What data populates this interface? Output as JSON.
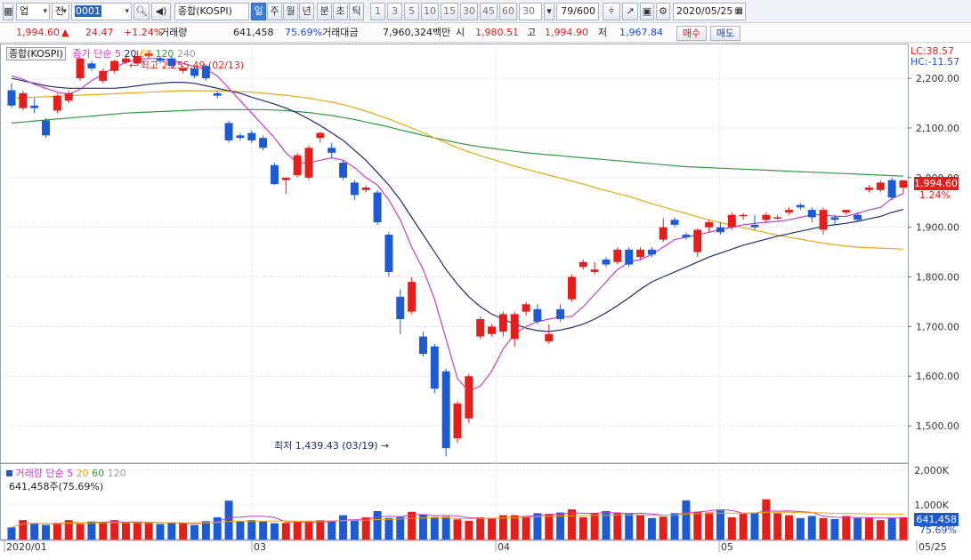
{
  "toolbar": {
    "market_select": "업",
    "type_select": "전",
    "code_input": "0001",
    "index_name": "종합(KOSPI)",
    "period_tabs": [
      "일",
      "주",
      "월",
      "년",
      "분",
      "초",
      "틱"
    ],
    "selected_period": "일",
    "interval_buttons": [
      "1",
      "3",
      "5",
      "10",
      "15",
      "30",
      "45",
      "60"
    ],
    "interval_value": "30",
    "count_display": "79/600",
    "date_input": "2020/05/25"
  },
  "info": {
    "price": "1,994.60",
    "change": "24.47",
    "change_pct": "+1.24%",
    "volume_label": "거래량",
    "volume": "641,458",
    "volume_pct": "75.69%",
    "amount_label": "거래대금",
    "amount": "7,960,324백만",
    "open_label": "시",
    "open": "1,980.51",
    "high_label": "고",
    "high": "1,994.90",
    "low_label": "저",
    "low": "1,967.84",
    "buy_button": "매수",
    "sell_button": "매도"
  },
  "legend": {
    "name": "종합(KOSPI)",
    "ma_prefix": "종가 단순",
    "ma_periods": [
      "5",
      "20",
      "60",
      "120",
      "240"
    ],
    "volume_prefix": "거래량 단순",
    "volume_ma_periods": [
      "5",
      "20",
      "60",
      "120"
    ],
    "volume_readout": "641,458주(75.69%)"
  },
  "annotations": {
    "high": "최고 2,255.49 (02/13)",
    "low": "최저 1,439.43 (03/19)"
  },
  "right_axis": {
    "lc": "LC:38.57",
    "hc": "HC:-11.57",
    "price_box": "1,994.60",
    "price_pct": "1.24%",
    "vol_box": "641,458",
    "vol_pct": "75.69%"
  },
  "colors": {
    "up": "#e0201c",
    "down": "#1e5bd0",
    "ma5": "#c43bc4",
    "ma20": "#1c2c6e",
    "ma60": "#e8a60f",
    "ma120": "#2f9a3f",
    "ma240": "#999999"
  },
  "chart_data": {
    "type": "candlestick",
    "price_ticks": [
      "2,200.00",
      "2,100.00",
      "2,000.00",
      "1,900.00",
      "1,800.00",
      "1,700.00",
      "1,600.00",
      "1,500.00"
    ],
    "volume_ticks": [
      "2,000K",
      "1,000K"
    ],
    "x_labels": [
      "2020/01",
      "03",
      "04",
      "05",
      "05/25"
    ],
    "ylim": [
      1425,
      2270
    ],
    "candles": [
      [
        2176,
        2145,
        2190,
        2140
      ],
      [
        2140,
        2170,
        2175,
        2135
      ],
      [
        2145,
        2140,
        2160,
        2130
      ],
      [
        2115,
        2085,
        2120,
        2080
      ],
      [
        2135,
        2165,
        2170,
        2130
      ],
      [
        2155,
        2170,
        2175,
        2150
      ],
      [
        2200,
        2240,
        2242,
        2195
      ],
      [
        2230,
        2220,
        2235,
        2215
      ],
      [
        2195,
        2215,
        2220,
        2190
      ],
      [
        2215,
        2235,
        2238,
        2210
      ],
      [
        2232,
        2240,
        2245,
        2228
      ],
      [
        2230,
        2245,
        2256,
        2225
      ],
      [
        2245,
        2250,
        2255,
        2240
      ],
      [
        2240,
        2235,
        2245,
        2230
      ],
      [
        2240,
        2225,
        2245,
        2220
      ],
      [
        2215,
        2220,
        2225,
        2210
      ],
      [
        2220,
        2205,
        2225,
        2200
      ],
      [
        2225,
        2200,
        2228,
        2195
      ],
      [
        2170,
        2165,
        2175,
        2160
      ],
      [
        2110,
        2075,
        2115,
        2070
      ],
      [
        2085,
        2080,
        2090,
        2075
      ],
      [
        2090,
        2075,
        2095,
        2070
      ],
      [
        2080,
        2060,
        2085,
        2055
      ],
      [
        2025,
        1987,
        2030,
        1985
      ],
      [
        1995,
        2000,
        2000,
        1967
      ],
      [
        2005,
        2045,
        2050,
        2000
      ],
      [
        2000,
        2060,
        2065,
        1995
      ],
      [
        2080,
        2090,
        2092,
        2070
      ],
      [
        2060,
        2050,
        2070,
        2040
      ],
      [
        2030,
        2000,
        2035,
        1995
      ],
      [
        1990,
        1965,
        1995,
        1955
      ],
      [
        1975,
        1980,
        1985,
        1970
      ],
      [
        1970,
        1910,
        1975,
        1905
      ],
      [
        1885,
        1810,
        1890,
        1800
      ],
      [
        1760,
        1715,
        1775,
        1685
      ],
      [
        1730,
        1790,
        1800,
        1725
      ],
      [
        1680,
        1645,
        1690,
        1640
      ],
      [
        1660,
        1575,
        1665,
        1565
      ],
      [
        1610,
        1455,
        1615,
        1439
      ],
      [
        1475,
        1545,
        1550,
        1465
      ],
      [
        1515,
        1600,
        1605,
        1505
      ],
      [
        1680,
        1715,
        1720,
        1675
      ],
      [
        1685,
        1700,
        1705,
        1680
      ],
      [
        1690,
        1725,
        1730,
        1680
      ],
      [
        1675,
        1725,
        1730,
        1660
      ],
      [
        1730,
        1745,
        1750,
        1722
      ],
      [
        1735,
        1710,
        1745,
        1705
      ],
      [
        1670,
        1685,
        1705,
        1665
      ],
      [
        1735,
        1715,
        1745,
        1710
      ],
      [
        1755,
        1800,
        1805,
        1750
      ],
      [
        1820,
        1830,
        1835,
        1815
      ],
      [
        1810,
        1815,
        1830,
        1805
      ],
      [
        1835,
        1825,
        1840,
        1820
      ],
      [
        1830,
        1855,
        1860,
        1825
      ],
      [
        1855,
        1825,
        1860,
        1820
      ],
      [
        1840,
        1855,
        1860,
        1835
      ],
      [
        1855,
        1845,
        1860,
        1840
      ],
      [
        1875,
        1900,
        1918,
        1870
      ],
      [
        1915,
        1905,
        1920,
        1900
      ],
      [
        1885,
        1880,
        1890,
        1875
      ],
      [
        1850,
        1895,
        1898,
        1840
      ],
      [
        1900,
        1910,
        1915,
        1890
      ],
      [
        1900,
        1890,
        1910,
        1885
      ],
      [
        1900,
        1925,
        1930,
        1895
      ],
      [
        1925,
        1925,
        1928,
        1915
      ],
      [
        1905,
        1900,
        1925,
        1895
      ],
      [
        1915,
        1925,
        1930,
        1910
      ],
      [
        1920,
        1920,
        1925,
        1915
      ],
      [
        1930,
        1935,
        1940,
        1925
      ],
      [
        1945,
        1940,
        1948,
        1935
      ],
      [
        1935,
        1920,
        1940,
        1910
      ],
      [
        1895,
        1935,
        1940,
        1885
      ],
      [
        1920,
        1915,
        1925,
        1905
      ],
      [
        1930,
        1935,
        1935,
        1925
      ],
      [
        1925,
        1915,
        1930,
        1910
      ],
      [
        1975,
        1980,
        1985,
        1970
      ],
      [
        1975,
        1990,
        1995,
        1970
      ],
      [
        1995,
        1960,
        2000,
        1955
      ],
      [
        1980,
        1994.6,
        1994.9,
        1967.84
      ]
    ],
    "volume": [
      350,
      560,
      480,
      420,
      480,
      560,
      450,
      520,
      500,
      560,
      480,
      490,
      470,
      450,
      500,
      470,
      420,
      530,
      640,
      1120,
      520,
      560,
      520,
      470,
      480,
      500,
      520,
      560,
      530,
      700,
      560,
      640,
      820,
      620,
      650,
      800,
      720,
      650,
      660,
      580,
      540,
      640,
      620,
      700,
      700,
      680,
      760,
      740,
      780,
      870,
      640,
      760,
      820,
      760,
      760,
      720,
      620,
      660,
      760,
      1130,
      800,
      780,
      840,
      640,
      740,
      780,
      1160,
      760,
      700,
      620,
      680,
      620,
      590,
      680,
      620,
      640,
      560,
      620,
      641
    ],
    "ma5": [
      2205,
      2198,
      2188,
      2180,
      2172,
      2168,
      2178,
      2195,
      2208,
      2222,
      2232,
      2238,
      2240,
      2240,
      2236,
      2230,
      2224,
      2218,
      2205,
      2180,
      2155,
      2130,
      2105,
      2080,
      2050,
      2030,
      2030,
      2035,
      2040,
      2035,
      2020,
      2000,
      1985,
      1955,
      1915,
      1860,
      1815,
      1755,
      1675,
      1595,
      1570,
      1580,
      1610,
      1655,
      1685,
      1700,
      1710,
      1715,
      1720,
      1720,
      1740,
      1765,
      1790,
      1815,
      1830,
      1835,
      1845,
      1860,
      1875,
      1880,
      1885,
      1890,
      1895,
      1900,
      1905,
      1908,
      1910,
      1912,
      1915,
      1920,
      1925,
      1925,
      1922,
      1922,
      1928,
      1935,
      1940,
      1958,
      1968
    ],
    "ma20": [
      2200,
      2195,
      2190,
      2185,
      2182,
      2180,
      2180,
      2180,
      2180,
      2180,
      2182,
      2185,
      2188,
      2190,
      2192,
      2192,
      2190,
      2185,
      2180,
      2175,
      2170,
      2162,
      2155,
      2148,
      2140,
      2130,
      2118,
      2105,
      2090,
      2075,
      2055,
      2035,
      2010,
      1985,
      1955,
      1920,
      1885,
      1850,
      1815,
      1785,
      1760,
      1740,
      1725,
      1715,
      1705,
      1697,
      1692,
      1690,
      1693,
      1698,
      1705,
      1715,
      1728,
      1742,
      1758,
      1775,
      1790,
      1800,
      1810,
      1820,
      1830,
      1840,
      1848,
      1856,
      1864,
      1870,
      1876,
      1882,
      1887,
      1892,
      1897,
      1902,
      1905,
      1908,
      1912,
      1917,
      1922,
      1930,
      1936
    ],
    "ma60": [
      2160,
      2161,
      2162,
      2163,
      2164,
      2165,
      2166,
      2167,
      2168,
      2169,
      2170,
      2171,
      2172,
      2173,
      2174,
      2175,
      2175,
      2175,
      2175,
      2174,
      2173,
      2172,
      2170,
      2168,
      2166,
      2163,
      2160,
      2156,
      2152,
      2147,
      2141,
      2134,
      2126,
      2118,
      2109,
      2100,
      2090,
      2080,
      2070,
      2060,
      2052,
      2044,
      2037,
      2030,
      2023,
      2017,
      2011,
      2005,
      1999,
      1993,
      1987,
      1980,
      1974,
      1968,
      1962,
      1955,
      1948,
      1941,
      1934,
      1928,
      1921,
      1915,
      1909,
      1904,
      1899,
      1894,
      1889,
      1884,
      1880,
      1876,
      1872,
      1868,
      1865,
      1862,
      1860,
      1859,
      1858,
      1857,
      1856
    ],
    "ma120": [
      2110,
      2112,
      2114,
      2116,
      2118,
      2120,
      2122,
      2124,
      2126,
      2128,
      2130,
      2131,
      2132,
      2133,
      2134,
      2135,
      2136,
      2137,
      2137,
      2137,
      2137,
      2137,
      2137,
      2136,
      2135,
      2133,
      2131,
      2128,
      2125,
      2121,
      2117,
      2112,
      2107,
      2102,
      2096,
      2091,
      2085,
      2080,
      2075,
      2070,
      2066,
      2062,
      2059,
      2056,
      2053,
      2050,
      2048,
      2046,
      2044,
      2042,
      2040,
      2038,
      2036,
      2034,
      2032,
      2030,
      2028,
      2026,
      2024,
      2022,
      2021,
      2020,
      2019,
      2018,
      2017,
      2016,
      2015,
      2014,
      2013,
      2012,
      2011,
      2010,
      2009,
      2008,
      2007,
      2006,
      2005,
      2004,
      2003
    ]
  }
}
